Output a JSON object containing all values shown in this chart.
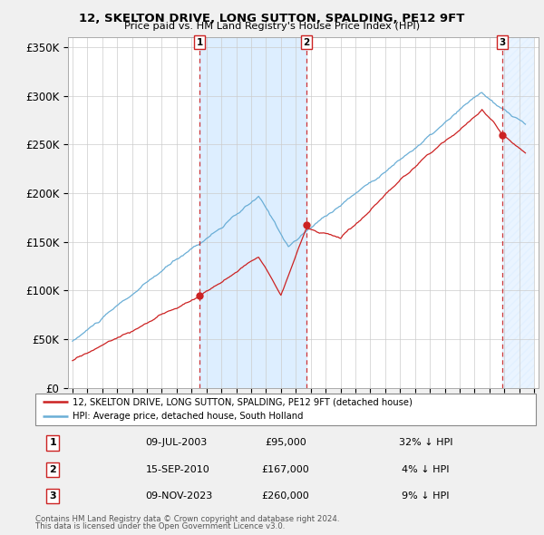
{
  "title": "12, SKELTON DRIVE, LONG SUTTON, SPALDING, PE12 9FT",
  "subtitle": "Price paid vs. HM Land Registry's House Price Index (HPI)",
  "hpi_color": "#6aaed6",
  "price_color": "#cc2222",
  "vline_color": "#cc2222",
  "ylim": [
    0,
    360000
  ],
  "yticks": [
    0,
    50000,
    100000,
    150000,
    200000,
    250000,
    300000,
    350000
  ],
  "ytick_labels": [
    "£0",
    "£50K",
    "£100K",
    "£150K",
    "£200K",
    "£250K",
    "£300K",
    "£350K"
  ],
  "transactions": [
    {
      "num": 1,
      "date": "09-JUL-2003",
      "price": 95000,
      "year": 2003.53,
      "pct": "32%",
      "dir": "↓"
    },
    {
      "num": 2,
      "date": "15-SEP-2010",
      "price": 167000,
      "year": 2010.71,
      "pct": "4%",
      "dir": "↓"
    },
    {
      "num": 3,
      "date": "09-NOV-2023",
      "price": 260000,
      "year": 2023.86,
      "pct": "9%",
      "dir": "↓"
    }
  ],
  "legend_label_price": "12, SKELTON DRIVE, LONG SUTTON, SPALDING, PE12 9FT (detached house)",
  "legend_label_hpi": "HPI: Average price, detached house, South Holland",
  "footer1": "Contains HM Land Registry data © Crown copyright and database right 2024.",
  "footer2": "This data is licensed under the Open Government Licence v3.0.",
  "bg_color": "#f0f0f0",
  "plot_bg_color": "#ffffff",
  "shade_color": "#ddeeff",
  "hatch_color": "#d0e0f0"
}
